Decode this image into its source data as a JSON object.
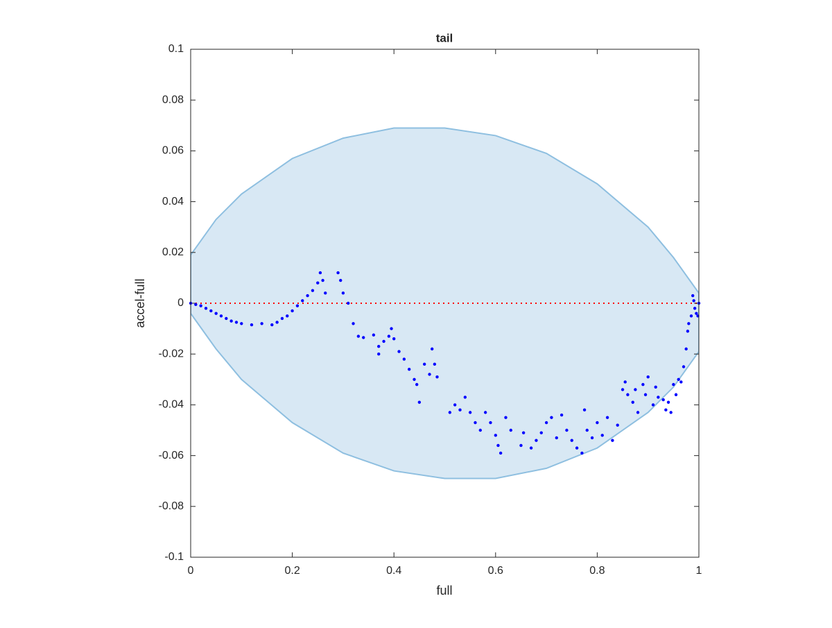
{
  "chart_data": {
    "type": "scatter",
    "title": "tail",
    "xlabel": "full",
    "ylabel": "accel-full",
    "xlim": [
      0,
      1
    ],
    "ylim": [
      -0.1,
      0.1
    ],
    "xticks": [
      0,
      0.2,
      0.4,
      0.6,
      0.8,
      1
    ],
    "yticks": [
      -0.1,
      -0.08,
      -0.06,
      -0.04,
      -0.02,
      0,
      0.02,
      0.04,
      0.06,
      0.08,
      0.1
    ],
    "color": "#0000ff",
    "region": {
      "color": "#d8e8f4",
      "edge_color": "#8ebfe0",
      "x": [
        0,
        0.05,
        0.1,
        0.2,
        0.3,
        0.4,
        0.5,
        0.6,
        0.7,
        0.8,
        0.9,
        0.95,
        1
      ],
      "upper": [
        0.019,
        0.033,
        0.043,
        0.057,
        0.065,
        0.069,
        0.069,
        0.066,
        0.059,
        0.047,
        0.03,
        0.018,
        0.004
      ],
      "lower": [
        -0.004,
        -0.018,
        -0.03,
        -0.047,
        -0.059,
        -0.066,
        -0.069,
        -0.069,
        -0.065,
        -0.057,
        -0.043,
        -0.033,
        -0.019
      ]
    },
    "reference_line": {
      "y": 0,
      "color": "#ff0000"
    },
    "x": [
      0,
      0.01,
      0.02,
      0.03,
      0.04,
      0.05,
      0.06,
      0.07,
      0.08,
      0.09,
      0.1,
      0.12,
      0.14,
      0.16,
      0.17,
      0.18,
      0.19,
      0.2,
      0.21,
      0.22,
      0.23,
      0.24,
      0.25,
      0.255,
      0.26,
      0.265,
      0.29,
      0.295,
      0.3,
      0.31,
      0.32,
      0.33,
      0.34,
      0.36,
      0.37,
      0.37,
      0.38,
      0.39,
      0.395,
      0.4,
      0.41,
      0.42,
      0.43,
      0.44,
      0.445,
      0.45,
      0.46,
      0.47,
      0.475,
      0.48,
      0.485,
      0.51,
      0.52,
      0.53,
      0.54,
      0.55,
      0.56,
      0.57,
      0.58,
      0.59,
      0.6,
      0.605,
      0.61,
      0.62,
      0.63,
      0.65,
      0.655,
      0.67,
      0.68,
      0.69,
      0.7,
      0.71,
      0.72,
      0.73,
      0.74,
      0.75,
      0.76,
      0.77,
      0.775,
      0.78,
      0.79,
      0.8,
      0.81,
      0.82,
      0.83,
      0.84,
      0.85,
      0.855,
      0.86,
      0.87,
      0.875,
      0.88,
      0.89,
      0.895,
      0.9,
      0.91,
      0.915,
      0.92,
      0.93,
      0.935,
      0.94,
      0.945,
      0.95,
      0.955,
      0.96,
      0.965,
      0.97,
      0.975,
      0.978,
      0.98,
      0.985,
      0.988,
      0.99,
      0.992,
      0.995,
      0.998,
      1
    ],
    "values": [
      0,
      -0.0005,
      -0.001,
      -0.002,
      -0.003,
      -0.004,
      -0.005,
      -0.006,
      -0.007,
      -0.0075,
      -0.008,
      -0.0085,
      -0.008,
      -0.0085,
      -0.0075,
      -0.006,
      -0.005,
      -0.003,
      -0.001,
      0.001,
      0.003,
      0.005,
      0.008,
      0.012,
      0.009,
      0.004,
      0.012,
      0.009,
      0.004,
      0,
      -0.008,
      -0.013,
      -0.0135,
      -0.0125,
      -0.017,
      -0.02,
      -0.015,
      -0.013,
      -0.01,
      -0.014,
      -0.019,
      -0.022,
      -0.026,
      -0.03,
      -0.032,
      -0.039,
      -0.024,
      -0.028,
      -0.018,
      -0.024,
      -0.029,
      -0.043,
      -0.04,
      -0.042,
      -0.037,
      -0.043,
      -0.047,
      -0.05,
      -0.043,
      -0.047,
      -0.052,
      -0.056,
      -0.059,
      -0.045,
      -0.05,
      -0.056,
      -0.051,
      -0.057,
      -0.054,
      -0.051,
      -0.047,
      -0.045,
      -0.053,
      -0.044,
      -0.05,
      -0.054,
      -0.057,
      -0.059,
      -0.042,
      -0.05,
      -0.053,
      -0.047,
      -0.052,
      -0.045,
      -0.054,
      -0.048,
      -0.034,
      -0.031,
      -0.036,
      -0.039,
      -0.034,
      -0.043,
      -0.032,
      -0.036,
      -0.029,
      -0.04,
      -0.033,
      -0.037,
      -0.038,
      -0.042,
      -0.039,
      -0.043,
      -0.032,
      -0.036,
      -0.03,
      -0.031,
      -0.025,
      -0.018,
      -0.011,
      -0.008,
      -0.005,
      0.003,
      0.001,
      -0.002,
      -0.004,
      -0.005,
      0
    ]
  }
}
